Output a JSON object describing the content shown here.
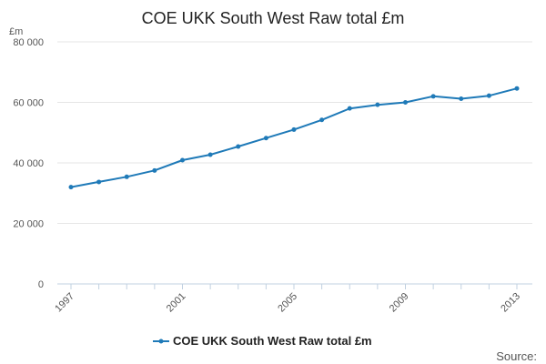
{
  "chart_data": {
    "type": "line",
    "title": "COE UKK South West Raw total £m",
    "ylabel": "£m",
    "xlabel": "",
    "x": [
      1997,
      1998,
      1999,
      2000,
      2001,
      2002,
      2003,
      2004,
      2005,
      2006,
      2007,
      2008,
      2009,
      2010,
      2011,
      2012,
      2013
    ],
    "series": [
      {
        "name": "COE UKK South West Raw total £m",
        "values": [
          32000,
          33700,
          35400,
          37500,
          40900,
          42700,
          45400,
          48200,
          51000,
          54200,
          58000,
          59200,
          60000,
          62000,
          61200,
          62200,
          64600
        ]
      }
    ],
    "ylim": [
      0,
      80000
    ],
    "yticks": [
      "0",
      "20 000",
      "40 000",
      "60 000",
      "80 000"
    ],
    "yticks_values": [
      0,
      20000,
      40000,
      60000,
      80000
    ],
    "xticks": [
      "1997",
      "2001",
      "2005",
      "2009",
      "2013"
    ],
    "xticks_values": [
      1997,
      2001,
      2005,
      2009,
      2013
    ],
    "grid": true,
    "legend_position": "bottom-center",
    "colors": {
      "series": "#1f7ab8",
      "grid": "#e6e6e6",
      "axis": "#c0d0e0"
    }
  },
  "footer": {
    "source_label": "Source:"
  }
}
